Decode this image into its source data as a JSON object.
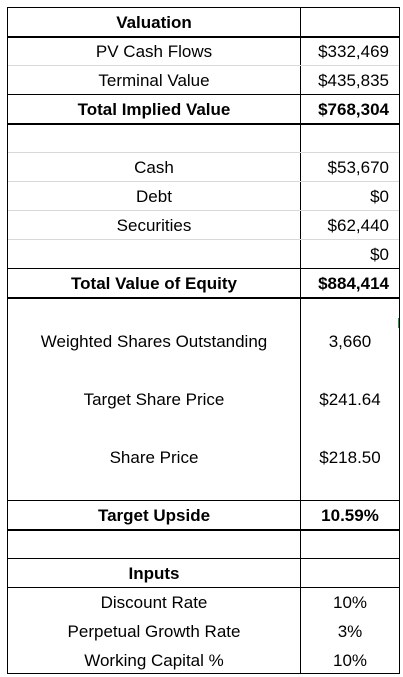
{
  "valuation": {
    "header": "Valuation",
    "rows": [
      {
        "label": "PV Cash Flows",
        "value": "$332,469"
      },
      {
        "label": "Terminal Value",
        "value": "$435,835"
      },
      {
        "label": "Total Implied Value",
        "value": "$768,304"
      },
      {
        "label": "",
        "value": ""
      },
      {
        "label": "Cash",
        "value": "$53,670"
      },
      {
        "label": "Debt",
        "value": "$0"
      },
      {
        "label": "Securities",
        "value": "$62,440"
      },
      {
        "label": "",
        "value": "$0"
      },
      {
        "label": "Total Value of Equity",
        "value": "$884,414"
      },
      {
        "label": "",
        "value": ""
      },
      {
        "label": "Weighted Shares Outstanding",
        "value": "3,660"
      },
      {
        "label": "",
        "value": ""
      },
      {
        "label": "Target Share Price",
        "value": "$241.64"
      },
      {
        "label": "",
        "value": ""
      },
      {
        "label": "Share Price",
        "value": "$218.50"
      },
      {
        "label": "",
        "value": ""
      },
      {
        "label": "Target Upside",
        "value": "10.59%"
      },
      {
        "label": "",
        "value": ""
      }
    ]
  },
  "inputs": {
    "header": "Inputs",
    "rows": [
      {
        "label": "Discount Rate",
        "value": "10%"
      },
      {
        "label": "Perpetual Growth Rate",
        "value": "3%"
      },
      {
        "label": "Working Capital %",
        "value": "10%"
      }
    ]
  }
}
